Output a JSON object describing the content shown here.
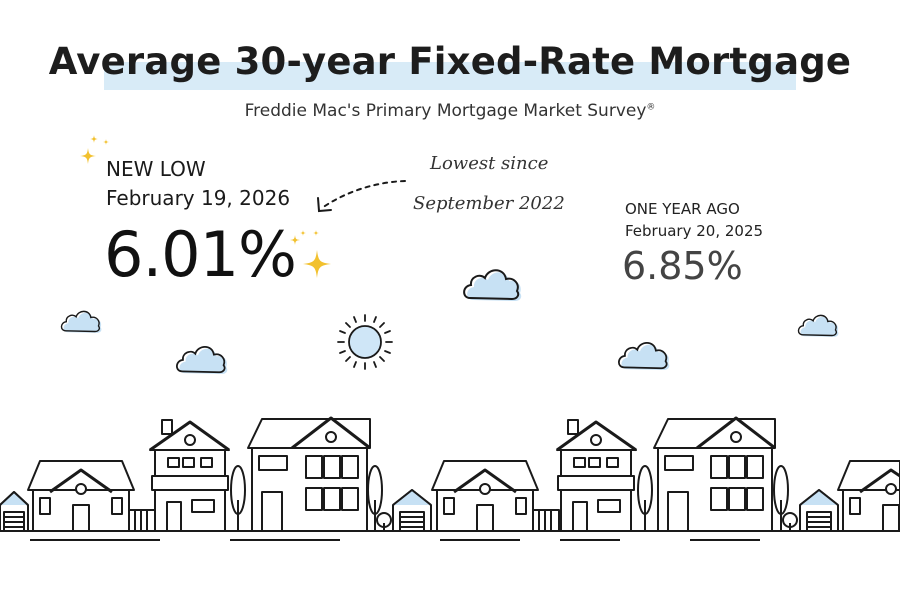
{
  "title": "Average 30-year Fixed-Rate Mortgage",
  "subtitle": "Freddie Mac's Primary Mortgage Market Survey",
  "subtitle_mark": "®",
  "new_low": {
    "label": "NEW LOW",
    "date": "February 19, 2026",
    "rate": "6.01%"
  },
  "annotation": {
    "line1": "Lowest since",
    "line2": "September 2022"
  },
  "one_year_ago": {
    "label": "ONE YEAR AGO",
    "date": "February 20, 2025",
    "rate": "6.85%"
  },
  "colors": {
    "highlight": "#d8ebf7",
    "cloud": "#c7e1f4",
    "sun": "#cfe6f7",
    "sparkle": "#f2c12e",
    "outline": "#1a1a1a"
  },
  "icons": [
    "sparkle-icon",
    "cloud-icon",
    "sun-icon",
    "house-icon",
    "tree-icon",
    "arrow-icon"
  ]
}
